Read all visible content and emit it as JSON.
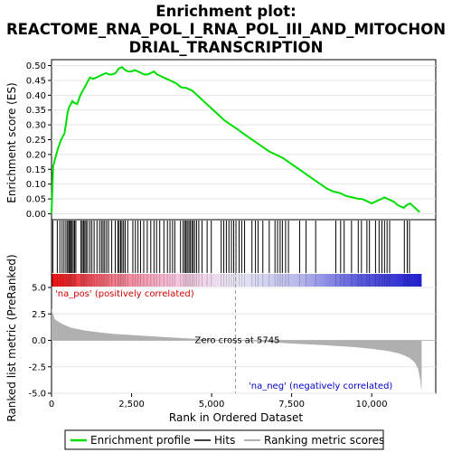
{
  "chart_data": {
    "type": "line",
    "title_lines": [
      "Enrichment plot:",
      "REACTOME_RNA_POL_I_RNA_POL_III_AND_MITOCHON",
      "DRIAL_TRANSCRIPTION"
    ],
    "top_panel": {
      "ylabel": "Enrichment score (ES)",
      "ylim": [
        -0.02,
        0.52
      ],
      "yticks": [
        0.0,
        0.05,
        0.1,
        0.15,
        0.2,
        0.25,
        0.3,
        0.35,
        0.4,
        0.45,
        0.5
      ],
      "ytick_labels": [
        "0.00",
        "0.05",
        "0.10",
        "0.15",
        "0.20",
        "0.25",
        "0.30",
        "0.35",
        "0.40",
        "0.45",
        "0.50"
      ],
      "series_color": "#00dd00",
      "es_curve": {
        "x": [
          0,
          50,
          100,
          150,
          200,
          250,
          300,
          350,
          400,
          450,
          500,
          550,
          600,
          650,
          700,
          800,
          900,
          1000,
          1100,
          1200,
          1300,
          1400,
          1500,
          1600,
          1700,
          1800,
          1900,
          2000,
          2100,
          2200,
          2300,
          2400,
          2500,
          2600,
          2700,
          2800,
          2900,
          3000,
          3100,
          3200,
          3300,
          3400,
          3500,
          3600,
          3700,
          3800,
          3900,
          4000,
          4100,
          4200,
          4300,
          4400,
          4500,
          4600,
          4800,
          5000,
          5200,
          5400,
          5600,
          5745,
          6000,
          6200,
          6400,
          6600,
          6800,
          7000,
          7200,
          7400,
          7600,
          7800,
          8000,
          8200,
          8400,
          8600,
          8800,
          9000,
          9100,
          9200,
          9400,
          9600,
          9700,
          9800,
          9900,
          10000,
          10100,
          10200,
          10300,
          10400,
          10500,
          10600,
          10700,
          10800,
          10900,
          11000,
          11100,
          11200,
          11300,
          11400,
          11500
        ],
        "y": [
          0.0,
          0.16,
          0.18,
          0.2,
          0.22,
          0.235,
          0.25,
          0.26,
          0.27,
          0.3,
          0.34,
          0.36,
          0.37,
          0.38,
          0.375,
          0.37,
          0.4,
          0.42,
          0.44,
          0.46,
          0.455,
          0.46,
          0.465,
          0.47,
          0.475,
          0.47,
          0.47,
          0.475,
          0.49,
          0.495,
          0.485,
          0.48,
          0.48,
          0.485,
          0.48,
          0.475,
          0.47,
          0.47,
          0.475,
          0.48,
          0.47,
          0.465,
          0.46,
          0.455,
          0.45,
          0.445,
          0.44,
          0.43,
          0.425,
          0.425,
          0.42,
          0.415,
          0.405,
          0.395,
          0.375,
          0.355,
          0.335,
          0.315,
          0.3,
          0.29,
          0.27,
          0.255,
          0.24,
          0.225,
          0.21,
          0.2,
          0.19,
          0.175,
          0.16,
          0.145,
          0.13,
          0.115,
          0.1,
          0.085,
          0.075,
          0.07,
          0.065,
          0.06,
          0.055,
          0.05,
          0.05,
          0.045,
          0.04,
          0.035,
          0.04,
          0.045,
          0.05,
          0.055,
          0.05,
          0.045,
          0.04,
          0.03,
          0.025,
          0.02,
          0.03,
          0.035,
          0.025,
          0.015,
          0.005
        ]
      }
    },
    "hits_panel": {
      "hit_ranks": [
        40,
        180,
        260,
        330,
        390,
        450,
        500,
        540,
        570,
        600,
        640,
        680,
        720,
        760,
        920,
        960,
        1000,
        1040,
        1080,
        1130,
        1200,
        1260,
        1330,
        1420,
        1500,
        1560,
        1610,
        1660,
        1720,
        1780,
        1880,
        1990,
        2070,
        2110,
        2160,
        2200,
        2250,
        2300,
        2380,
        2540,
        2620,
        2700,
        2780,
        2880,
        2990,
        3100,
        3200,
        3280,
        3380,
        3510,
        3620,
        3700,
        3780,
        3850,
        4030,
        4110,
        4160,
        4200,
        4240,
        4290,
        4330,
        4380,
        4420,
        4470,
        4530,
        4600,
        4700,
        4860,
        4990,
        5300,
        5380,
        5460,
        5540,
        5620,
        5690,
        5760,
        5860,
        5940,
        6030,
        6260,
        6370,
        6450,
        6600,
        6800,
        6980,
        7060,
        7140,
        7210,
        7310,
        7400,
        7750,
        7950,
        8250,
        8880,
        9030,
        9140,
        9370,
        9580,
        9680,
        9850,
        9930,
        10120,
        10230,
        10320,
        10400,
        10480,
        10560,
        11020,
        11110,
        11180
      ]
    },
    "metric_panel": {
      "ylabel": "Ranked list metric (PreRanked)",
      "ylim": [
        -5,
        5
      ],
      "yticks": [
        5.0,
        2.5,
        0.0,
        -2.5,
        -5.0
      ],
      "ytick_labels": [
        "5.0",
        "2.5",
        "0.0",
        "-2.5",
        "-5.0"
      ],
      "fill_color": "#b0b0b0",
      "metric_curve": {
        "x": [
          0,
          100,
          300,
          600,
          1000,
          1500,
          2000,
          3000,
          4000,
          5000,
          5745,
          6500,
          7500,
          8500,
          9500,
          10000,
          10500,
          10800,
          11000,
          11200,
          11350,
          11450,
          11520,
          11560
        ],
        "y": [
          3.0,
          2.0,
          1.6,
          1.2,
          0.95,
          0.75,
          0.6,
          0.4,
          0.22,
          0.08,
          0.0,
          -0.12,
          -0.3,
          -0.45,
          -0.65,
          -0.8,
          -1.0,
          -1.2,
          -1.4,
          -1.7,
          -2.1,
          -2.7,
          -3.8,
          -4.8
        ]
      },
      "zero_cross_label": "Zero cross at 5745",
      "zero_cross": 5745,
      "pos_label": "'na_pos' (positively correlated)",
      "neg_label": "'na_neg' (negatively correlated)",
      "pos_color": "#cc0000",
      "neg_color": "#0000cc"
    },
    "x_axis": {
      "xlabel": "Rank in Ordered Dataset",
      "xlim": [
        0,
        12000
      ],
      "xticks": [
        0,
        2500,
        5000,
        7500,
        10000
      ],
      "xtick_labels": [
        "0",
        "2,500",
        "5,000",
        "7,500",
        "10,000"
      ],
      "n_genes": 11560
    },
    "legend": {
      "placement": "bottom",
      "entries": [
        {
          "label": "Enrichment profile",
          "color": "#00dd00"
        },
        {
          "label": "Hits",
          "color": "#000000"
        },
        {
          "label": "Ranking metric scores",
          "color": "#b0b0b0"
        }
      ]
    },
    "colorbar": {
      "stops": [
        "#ee1111",
        "#f27a8a",
        "#f7c2dd",
        "#e8e8f6",
        "#b8b8ec",
        "#5a5add",
        "#2020cc"
      ]
    }
  }
}
